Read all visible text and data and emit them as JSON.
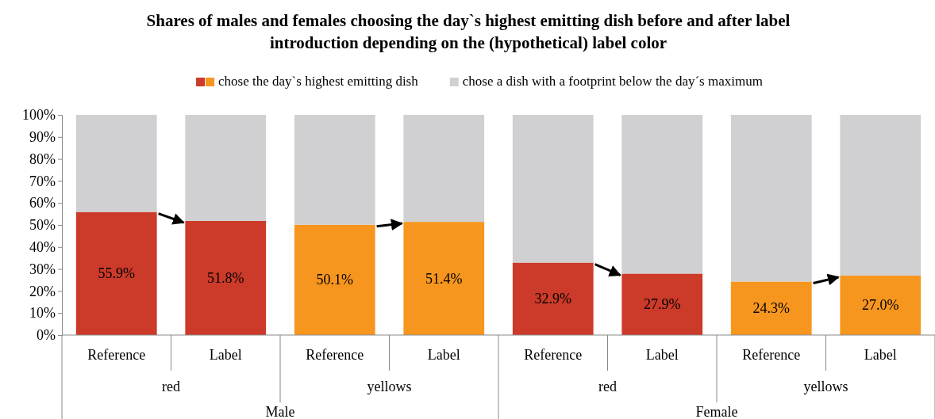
{
  "chart_data": {
    "type": "bar",
    "stacked": true,
    "title": "Shares of males and females choosing the day`s highest emitting dish before and after label introduction depending on the (hypothetical) label color",
    "categories": [
      "Reference",
      "Label",
      "Reference",
      "Label",
      "Reference",
      "Label",
      "Reference",
      "Label"
    ],
    "series": [
      {
        "name": "chose the day`s highest emitting dish",
        "colors": [
          "#cc3a29",
          "#cc3a29",
          "#f7961e",
          "#f7961e",
          "#cc3a29",
          "#cc3a29",
          "#f7961e",
          "#f7961e"
        ],
        "values": [
          55.9,
          51.8,
          50.1,
          51.4,
          32.9,
          27.9,
          24.3,
          27.0
        ],
        "value_labels": [
          "55.9%",
          "51.8%",
          "50.1%",
          "51.4%",
          "32.9%",
          "27.9%",
          "24.3%",
          "27.0%"
        ]
      },
      {
        "name": "chose a dish with a footprint below the day´s maximum",
        "color": "#d0d0d2",
        "values": [
          44.1,
          48.2,
          49.9,
          48.6,
          67.1,
          72.1,
          75.7,
          73.0
        ]
      }
    ],
    "annotations": [
      "red",
      "yellows",
      "red",
      "yellows",
      "Male",
      "Female"
    ],
    "ylim": [
      0,
      100
    ],
    "yticks": [
      {
        "value": 0,
        "label": "0%"
      },
      {
        "value": 10,
        "label": "10%"
      },
      {
        "value": 20,
        "label": "20%"
      },
      {
        "value": 30,
        "label": "30%"
      },
      {
        "value": 40,
        "label": "40%"
      },
      {
        "value": 50,
        "label": "50%"
      },
      {
        "value": 60,
        "label": "60%"
      },
      {
        "value": 70,
        "label": "70%"
      },
      {
        "value": 80,
        "label": "80%"
      },
      {
        "value": 90,
        "label": "90%"
      },
      {
        "value": 100,
        "label": "100%"
      }
    ],
    "legend": "top"
  }
}
